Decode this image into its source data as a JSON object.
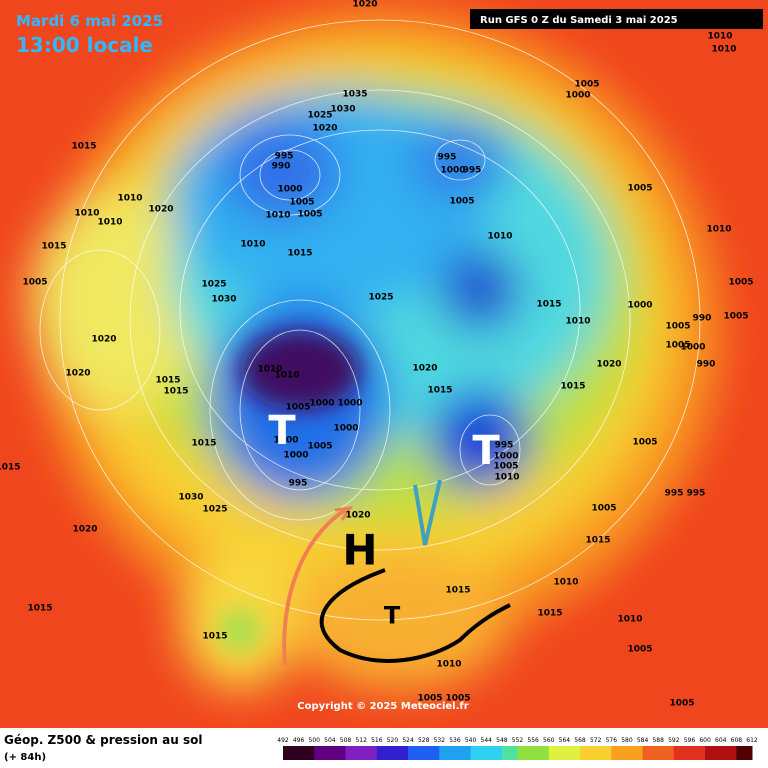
{
  "header": {
    "date": "Mardi 6 mai 2025",
    "time": "13:00 locale",
    "run": "Run GFS 0 Z du Samedi 3 mai 2025"
  },
  "map": {
    "copyright": "Copyright © 2025 Meteociel.fr",
    "symbols": [
      "T",
      "T",
      "H",
      "T"
    ],
    "isobar_labels": [
      1020,
      1010,
      1010,
      1005,
      1000,
      1035,
      1030,
      1025,
      1020,
      1015,
      995,
      990,
      995,
      1000,
      995,
      1000,
      1005,
      1005,
      1010,
      1010,
      1020,
      1010,
      1010,
      1005,
      1005,
      1010,
      1010,
      1015,
      1010,
      1015,
      1025,
      1030,
      1025,
      1005,
      1015,
      1005,
      1010,
      1000,
      990,
      1005,
      1005,
      1005,
      1000,
      1020,
      1020,
      1020,
      990,
      1010,
      1010,
      1015,
      1015,
      1020,
      1015,
      1015,
      1005,
      1000,
      1000,
      1000,
      1005,
      1000,
      1000,
      995,
      1015,
      1005,
      995,
      1000,
      1005,
      1010,
      1015,
      1030,
      1025,
      995,
      995,
      1005,
      1020,
      1020,
      1015,
      1015,
      1015,
      1010,
      1015,
      1010,
      1015,
      1010,
      1005,
      1005,
      1005,
      1005
    ]
  },
  "footer": {
    "title": "Géop. Z500 & pression au sol",
    "lead": "(+ 84h)",
    "scale": [
      492,
      496,
      500,
      504,
      508,
      512,
      516,
      520,
      524,
      528,
      532,
      536,
      540,
      544,
      548,
      552,
      556,
      560,
      564,
      568,
      572,
      576,
      580,
      584,
      588,
      592,
      596,
      600,
      604,
      608,
      612
    ]
  }
}
